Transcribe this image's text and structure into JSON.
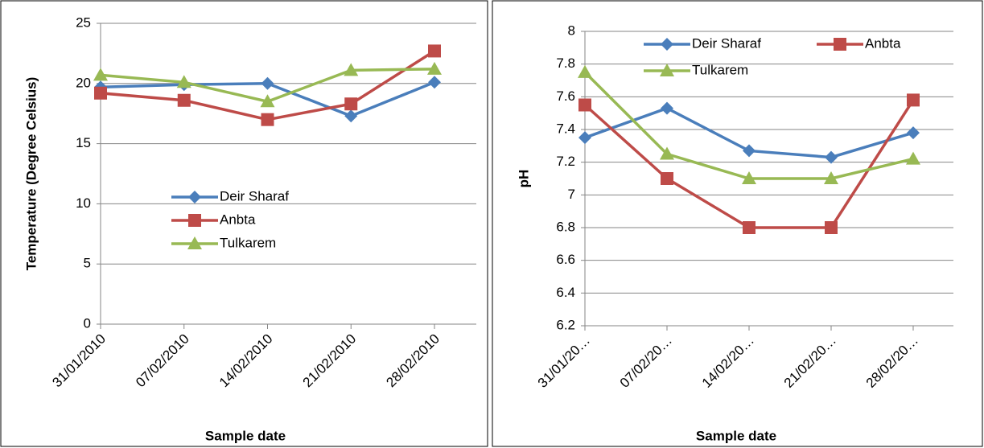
{
  "chart_data": [
    {
      "type": "line",
      "x_label": "Sample date",
      "y_label": "Temperature (Degree Celsius)",
      "categories": [
        "31/01/2010",
        "07/02/2010",
        "14/02/2010",
        "21/02/2010",
        "28/02/2010"
      ],
      "series": [
        {
          "name": "Deir Sharaf",
          "color": "#4a7ebb",
          "marker": "diamond",
          "values": [
            19.7,
            19.9,
            20.0,
            17.3,
            20.1
          ]
        },
        {
          "name": "Anbta",
          "color": "#be4b48",
          "marker": "square",
          "values": [
            19.2,
            18.6,
            17.0,
            18.3,
            22.7
          ]
        },
        {
          "name": "Tulkarem",
          "color": "#98b954",
          "marker": "triangle",
          "values": [
            20.7,
            20.1,
            18.5,
            21.1,
            21.2
          ]
        }
      ],
      "ylim": [
        0,
        25
      ],
      "yticks": [
        0,
        5,
        10,
        15,
        20,
        25
      ],
      "grid": true
    },
    {
      "type": "line",
      "x_label": "Sample date",
      "y_label": "pH",
      "categories": [
        "31/01/20…",
        "07/02/20…",
        "14/02/20…",
        "21/02/20…",
        "28/02/20…"
      ],
      "series": [
        {
          "name": "Deir Sharaf",
          "color": "#4a7ebb",
          "marker": "diamond",
          "values": [
            7.35,
            7.53,
            7.27,
            7.23,
            7.38
          ]
        },
        {
          "name": "Anbta",
          "color": "#be4b48",
          "marker": "square",
          "values": [
            7.55,
            7.1,
            6.8,
            6.8,
            7.58
          ]
        },
        {
          "name": "Tulkarem",
          "color": "#98b954",
          "marker": "triangle",
          "values": [
            7.75,
            7.25,
            7.1,
            7.1,
            7.22
          ]
        }
      ],
      "ylim": [
        6.2,
        8
      ],
      "yticks": [
        6.2,
        6.4,
        6.6,
        6.8,
        7,
        7.2,
        7.4,
        7.6,
        7.8,
        8
      ],
      "grid": true
    }
  ]
}
